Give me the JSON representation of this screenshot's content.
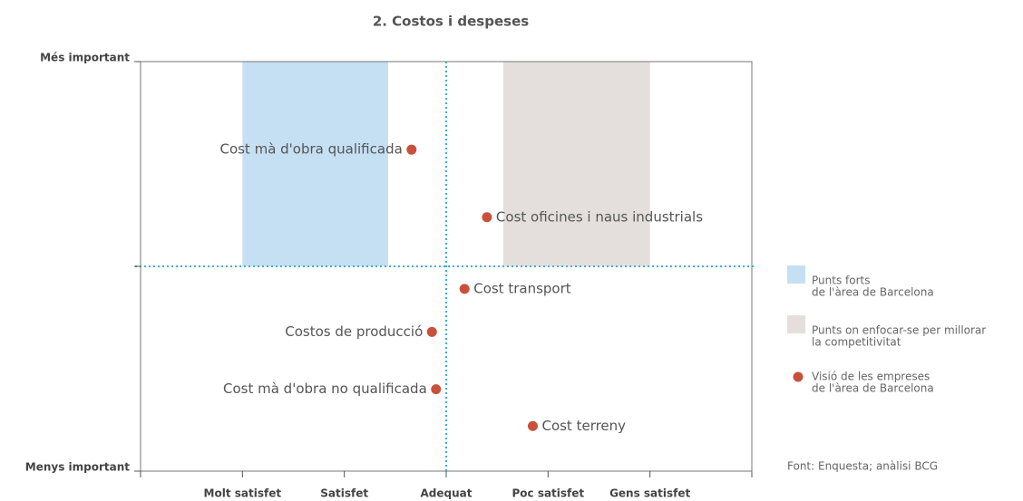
{
  "chart_data": {
    "type": "scatter",
    "title": "2. Costos i despeses",
    "xlim": [
      0,
      6
    ],
    "xticks": [
      0,
      {
        "value": 1,
        "label": "Molt satisfet"
      },
      {
        "value": 2,
        "label": "Satisfet"
      },
      {
        "value": 3,
        "label": "Adequat"
      },
      {
        "value": 4,
        "label": "Poc satisfet"
      },
      {
        "value": 5,
        "label": "Gens satisfet"
      },
      6
    ],
    "ylim": [
      0,
      2
    ],
    "yticks": [
      {
        "value": 0,
        "label": "Menys important"
      },
      {
        "value": 1,
        "label": ""
      },
      {
        "value": 2,
        "label": "Més important"
      }
    ],
    "dividers": {
      "x": 3,
      "y": 1,
      "color": "#3bb0d0"
    },
    "regions": [
      {
        "name": [
          "Punts forts",
          "de l'àrea de Barcelona"
        ],
        "color": "#c5dff3",
        "x": [
          1,
          2.43
        ],
        "y": [
          1,
          2
        ]
      },
      {
        "name": [
          "Punts on enfocar-se per millorar",
          "la competitivitat"
        ],
        "color": "#e4dfdd",
        "x": [
          3.56,
          5
        ],
        "y": [
          1,
          2
        ]
      }
    ],
    "series": [
      {
        "name": [
          "Visió de les empreses",
          "de l'àrea de Barcelona"
        ],
        "color": "#c9503c",
        "labels": [
          "Cost mà d'obra qualificada",
          "Cost oficines i naus industrials",
          "Cost transport",
          "Costos de producció",
          "Cost mà d'obra no qualificada",
          "Cost terreny"
        ],
        "x": [
          2.66,
          3.4,
          3.18,
          2.86,
          2.9,
          3.85
        ],
        "values": [
          1.57,
          1.24,
          0.89,
          0.68,
          0.4,
          0.22
        ]
      }
    ],
    "source": "Font: Enquesta; anàlisi BCG"
  }
}
